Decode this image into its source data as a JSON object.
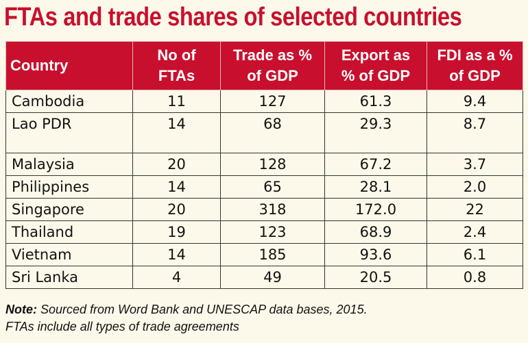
{
  "title": "FTAs and trade shares of selected countries",
  "table": {
    "headers": [
      {
        "line1": "Country",
        "line2": ""
      },
      {
        "line1": "No of",
        "line2": "FTAs"
      },
      {
        "line1": "Trade as %",
        "line2": "of GDP"
      },
      {
        "line1": "Export as",
        "line2": "% of GDP"
      },
      {
        "line1": "FDI as a %",
        "line2": "of GDP"
      }
    ],
    "rows": [
      [
        "Cambodia",
        "11",
        "127",
        "61.3",
        "9.4"
      ],
      [
        "Lao PDR",
        "14",
        "68",
        "29.3",
        "8.7"
      ],
      [
        "Malaysia",
        "20",
        "128",
        "67.2",
        "3.7"
      ],
      [
        "Philippines",
        "14",
        "65",
        "28.1",
        "2.0"
      ],
      [
        "Singapore",
        "20",
        "318",
        "172.0",
        "22"
      ],
      [
        "Thailand",
        "19",
        "123",
        "68.9",
        "2.4"
      ],
      [
        "Vietnam",
        "14",
        "185",
        "93.6",
        "6.1"
      ],
      [
        "Sri Lanka",
        "4",
        "49",
        "20.5",
        "0.8"
      ]
    ]
  },
  "note": {
    "label": "Note:",
    "line1": " Sourced from Word Bank and UNESCAP data bases, 2015.",
    "line2": "FTAs include all types of trade agreements"
  },
  "colors": {
    "header_bg": "#c8102e",
    "title": "#c8102e",
    "background": "#fdf9ea"
  }
}
